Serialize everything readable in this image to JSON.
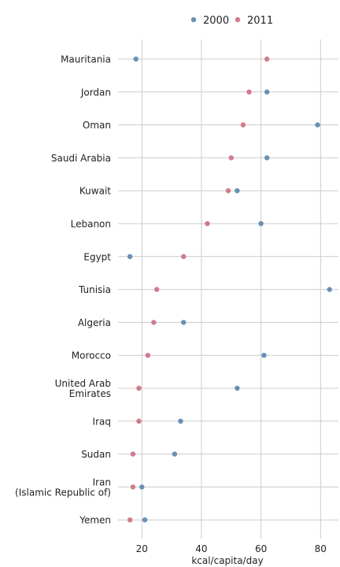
{
  "chart_data": {
    "type": "scatter",
    "categories": [
      "Mauritania",
      "Jordan",
      "Oman",
      "Saudi Arabia",
      "Kuwait",
      "Lebanon",
      "Egypt",
      "Tunisia",
      "Algeria",
      "Morocco",
      "United Arab\nEmirates",
      "Iraq",
      "Sudan",
      "Iran\n(Islamic Republic of)",
      "Yemen"
    ],
    "series": [
      {
        "name": "2000",
        "color": "#6a8fb4",
        "values": [
          18,
          62,
          79,
          62,
          52,
          60,
          16,
          83,
          34,
          61,
          52,
          33,
          31,
          20,
          21
        ]
      },
      {
        "name": "2011",
        "color": "#d17a8c",
        "values": [
          62,
          56,
          54,
          50,
          49,
          42,
          34,
          25,
          24,
          22,
          19,
          19,
          17,
          17,
          16
        ]
      }
    ],
    "xlabel": "kcal/capita/day",
    "xlim": [
      12,
      86
    ],
    "xticks": [
      20,
      40,
      60,
      80
    ],
    "grid": true,
    "legend_position": "top"
  }
}
